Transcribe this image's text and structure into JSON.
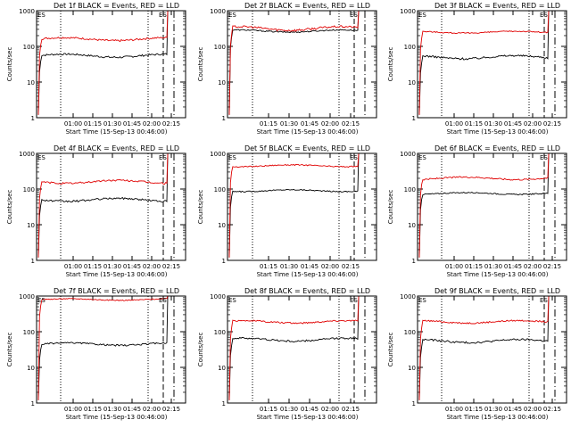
{
  "chart_data": [
    {
      "type": "line",
      "title": "Det 1f BLACK = Events, RED = LLD",
      "xlabel": "Start Time (15-Sep-13 00:46:00)",
      "ylabel": "Counts/sec",
      "yscale": "log",
      "ylim": [
        1,
        1000
      ],
      "x_ticks": [
        "01:00",
        "01:15",
        "01:30",
        "01:45",
        "02:00",
        "02:15"
      ],
      "y_ticks": [
        "1",
        "10",
        "100",
        "1000"
      ],
      "annotations": [
        "ES"
      ],
      "series": [
        {
          "color": "#000000",
          "level": 55,
          "amp": 0.1
        },
        {
          "color": "#e00000",
          "level": 160,
          "amp": 0.1
        }
      ]
    },
    {
      "type": "line",
      "title": "Det 2f BLACK = Events, RED = LLD",
      "xlabel": "Start Time (15-Sep-13 00:46:00)",
      "ylabel": "Counts/sec",
      "yscale": "log",
      "ylim": [
        1,
        1000
      ],
      "x_ticks": [
        "01:15",
        "01:30",
        "01:45",
        "02:00",
        "02:15"
      ],
      "y_ticks": [
        "1",
        "10",
        "100",
        "1000"
      ],
      "annotations": [
        "ES"
      ],
      "series": [
        {
          "color": "#000000",
          "level": 270,
          "amp": 0.07
        },
        {
          "color": "#e00000",
          "level": 320,
          "amp": 0.12
        }
      ]
    },
    {
      "type": "line",
      "title": "Det 3f BLACK = Events, RED = LLD",
      "xlabel": "Start Time (15-Sep-13 00:46:00)",
      "ylabel": "Counts/sec",
      "yscale": "log",
      "ylim": [
        1,
        1000
      ],
      "x_ticks": [
        "01:00",
        "01:15",
        "01:30",
        "01:45",
        "02:00",
        "02:15"
      ],
      "y_ticks": [
        "1",
        "10",
        "100",
        "1000"
      ],
      "annotations": [
        "ES"
      ],
      "series": [
        {
          "color": "#000000",
          "level": 50,
          "amp": 0.1
        },
        {
          "color": "#e00000",
          "level": 250,
          "amp": 0.06
        }
      ]
    },
    {
      "type": "line",
      "title": "Det 4f BLACK = Events, RED = LLD",
      "xlabel": "Start Time (15-Sep-13 00:46:00)",
      "ylabel": "Counts/sec",
      "yscale": "log",
      "ylim": [
        1,
        1000
      ],
      "x_ticks": [
        "01:00",
        "01:15",
        "01:30",
        "01:45",
        "02:00",
        "02:15"
      ],
      "y_ticks": [
        "1",
        "10",
        "100",
        "1000"
      ],
      "annotations": [
        "ES"
      ],
      "series": [
        {
          "color": "#000000",
          "level": 50,
          "amp": 0.1
        },
        {
          "color": "#e00000",
          "level": 160,
          "amp": 0.1
        }
      ]
    },
    {
      "type": "line",
      "title": "Det 5f BLACK = Events, RED = LLD",
      "xlabel": "Start Time (15-Sep-13 00:46:00)",
      "ylabel": "Counts/sec",
      "yscale": "log",
      "ylim": [
        1,
        1000
      ],
      "x_ticks": [
        "01:15",
        "01:30",
        "01:45",
        "02:00",
        "02:15"
      ],
      "y_ticks": [
        "1",
        "10",
        "100",
        "1000"
      ],
      "annotations": [
        "ES"
      ],
      "series": [
        {
          "color": "#000000",
          "level": 90,
          "amp": 0.06
        },
        {
          "color": "#e00000",
          "level": 450,
          "amp": 0.06
        }
      ]
    },
    {
      "type": "line",
      "title": "Det 6f BLACK = Events, RED = LLD",
      "xlabel": "Start Time (15-Sep-13 00:46:00)",
      "ylabel": "Counts/sec",
      "yscale": "log",
      "ylim": [
        1,
        1000
      ],
      "x_ticks": [
        "01:00",
        "01:15",
        "01:30",
        "01:45",
        "02:00",
        "02:15"
      ],
      "y_ticks": [
        "1",
        "10",
        "100",
        "1000"
      ],
      "annotations": [
        "ES"
      ],
      "series": [
        {
          "color": "#000000",
          "level": 75,
          "amp": 0.06
        },
        {
          "color": "#e00000",
          "level": 200,
          "amp": 0.08
        }
      ]
    },
    {
      "type": "line",
      "title": "Det 7f BLACK = Events, RED = LLD",
      "xlabel": "Start Time (15-Sep-13 00:46:00)",
      "ylabel": "Counts/sec",
      "yscale": "log",
      "ylim": [
        1,
        1000
      ],
      "x_ticks": [
        "01:00",
        "01:15",
        "01:30",
        "01:45",
        "02:00",
        "02:15"
      ],
      "y_ticks": [
        "1",
        "10",
        "100",
        "1000"
      ],
      "annotations": [
        "ES"
      ],
      "series": [
        {
          "color": "#000000",
          "level": 45,
          "amp": 0.08
        },
        {
          "color": "#e00000",
          "level": 800,
          "amp": 0.05
        }
      ]
    },
    {
      "type": "line",
      "title": "Det 8f BLACK = Events, RED = LLD",
      "xlabel": "Start Time (15-Sep-13 00:46:00)",
      "ylabel": "Counts/sec",
      "yscale": "log",
      "ylim": [
        1,
        1000
      ],
      "x_ticks": [
        "01:15",
        "01:30",
        "01:45",
        "02:00",
        "02:15"
      ],
      "y_ticks": [
        "1",
        "10",
        "100",
        "1000"
      ],
      "annotations": [
        "ES"
      ],
      "series": [
        {
          "color": "#000000",
          "level": 60,
          "amp": 0.1
        },
        {
          "color": "#e00000",
          "level": 190,
          "amp": 0.08
        }
      ]
    },
    {
      "type": "line",
      "title": "Det 9f BLACK = Events, RED = LLD",
      "xlabel": "Start Time (15-Sep-13 00:46:00)",
      "ylabel": "Counts/sec",
      "yscale": "log",
      "ylim": [
        1,
        1000
      ],
      "x_ticks": [
        "01:00",
        "01:15",
        "01:30",
        "01:45",
        "02:00",
        "02:15"
      ],
      "y_ticks": [
        "1",
        "10",
        "100",
        "1000"
      ],
      "annotations": [
        "ES"
      ],
      "series": [
        {
          "color": "#000000",
          "level": 55,
          "amp": 0.1
        },
        {
          "color": "#e00000",
          "level": 190,
          "amp": 0.08
        }
      ]
    }
  ]
}
